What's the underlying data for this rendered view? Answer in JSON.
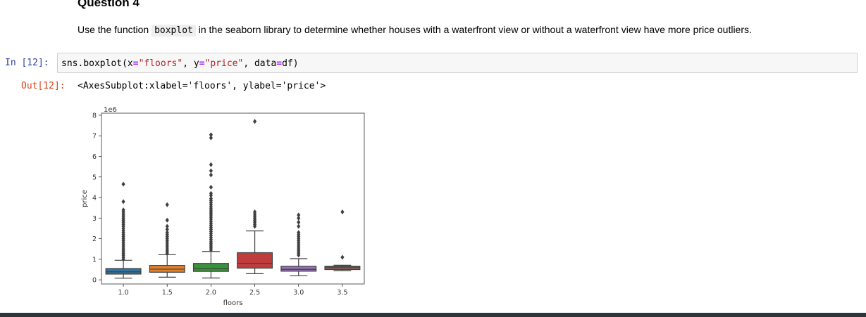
{
  "heading": "Question 4",
  "instructions": {
    "before": "Use the function ",
    "code": "boxplot",
    "after": " in the seaborn library to determine whether houses with a waterfront view or without a waterfront view have more price outliers."
  },
  "input_cell": {
    "prompt": "In [12]:",
    "code": {
      "t1": "sns.boxplot(x",
      "eq1": "=",
      "s1": "\"floors\"",
      "t2": ", y",
      "eq2": "=",
      "s2": "\"price\"",
      "t3": ", data",
      "eq3": "=",
      "t4": "df)"
    }
  },
  "output_cell": {
    "prompt": "Out[12]:",
    "text": "<AxesSubplot:xlabel='floors', ylabel='price'>"
  },
  "colors": {
    "box_fills": [
      "#3274a1",
      "#e1812c",
      "#3a923a",
      "#c03d3e",
      "#9372b2",
      "#845b53"
    ]
  },
  "chart_data": {
    "type": "box",
    "title": "",
    "xlabel": "floors",
    "ylabel": "price",
    "offset_label": "1e6",
    "categories": [
      "1.0",
      "1.5",
      "2.0",
      "2.5",
      "3.0",
      "3.5"
    ],
    "y_ticks": [
      "0",
      "1",
      "2",
      "3",
      "4",
      "5",
      "6",
      "7",
      "8"
    ],
    "ylim": [
      -0.2,
      8.1
    ],
    "grid": false,
    "boxes": [
      {
        "category": "1.0",
        "whisker_low": 0.08,
        "q1": 0.28,
        "median": 0.39,
        "q3": 0.55,
        "whisker_high": 0.95,
        "outliers": [
          1.0,
          1.1,
          1.2,
          1.3,
          1.4,
          1.5,
          1.6,
          1.7,
          1.8,
          1.9,
          2.0,
          2.1,
          2.2,
          2.3,
          2.4,
          2.5,
          2.6,
          2.7,
          2.8,
          2.9,
          3.0,
          3.1,
          3.2,
          3.3,
          3.4,
          3.8,
          4.65
        ]
      },
      {
        "category": "1.5",
        "whisker_low": 0.13,
        "q1": 0.37,
        "median": 0.52,
        "q3": 0.7,
        "whisker_high": 1.22,
        "outliers": [
          1.3,
          1.4,
          1.5,
          1.6,
          1.7,
          1.8,
          1.9,
          2.0,
          2.1,
          2.2,
          2.3,
          2.45,
          2.6,
          2.9,
          3.65
        ]
      },
      {
        "category": "2.0",
        "whisker_low": 0.09,
        "q1": 0.41,
        "median": 0.54,
        "q3": 0.8,
        "whisker_high": 1.38,
        "outliers": [
          1.45,
          1.55,
          1.65,
          1.75,
          1.85,
          1.95,
          2.05,
          2.15,
          2.25,
          2.35,
          2.45,
          2.55,
          2.65,
          2.75,
          2.85,
          2.95,
          3.05,
          3.15,
          3.25,
          3.35,
          3.45,
          3.55,
          3.65,
          3.75,
          3.85,
          3.95,
          4.1,
          4.2,
          4.5,
          5.1,
          5.3,
          5.6,
          6.9,
          7.05
        ]
      },
      {
        "category": "2.5",
        "whisker_low": 0.3,
        "q1": 0.57,
        "median": 0.8,
        "q3": 1.32,
        "whisker_high": 2.38,
        "outliers": [
          2.6,
          2.7,
          2.8,
          2.9,
          3.0,
          3.1,
          3.2,
          3.3,
          7.7
        ]
      },
      {
        "category": "3.0",
        "whisker_low": 0.2,
        "q1": 0.42,
        "median": 0.51,
        "q3": 0.66,
        "whisker_high": 1.03,
        "outliers": [
          1.2,
          1.3,
          1.4,
          1.5,
          1.6,
          1.7,
          1.8,
          1.9,
          2.0,
          2.1,
          2.2,
          2.3,
          2.6,
          2.8,
          3.0,
          3.15
        ]
      },
      {
        "category": "3.5",
        "whisker_low": 0.45,
        "q1": 0.5,
        "median": 0.62,
        "q3": 0.66,
        "whisker_high": 0.71,
        "outliers": [
          1.1,
          3.3
        ]
      }
    ]
  }
}
